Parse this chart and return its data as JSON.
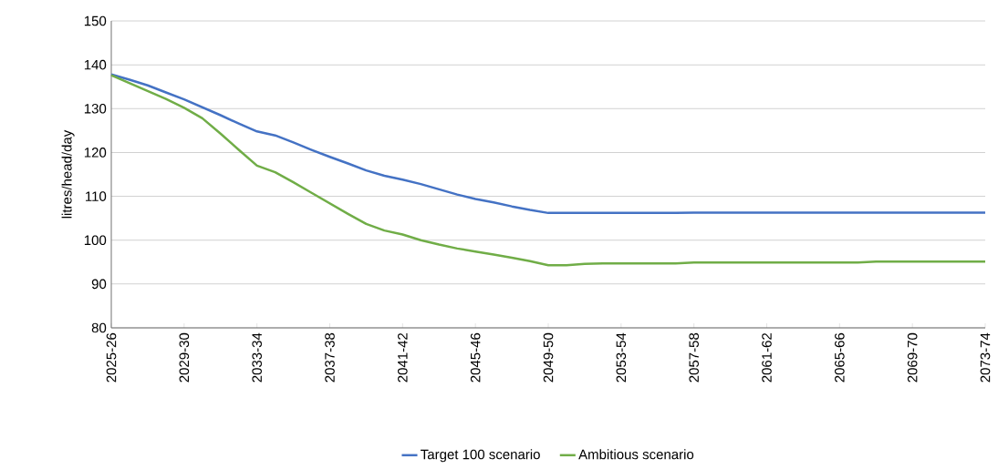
{
  "chart_data": {
    "type": "line",
    "ylabel": "litres/head/day",
    "categories": [
      "2025-26",
      null,
      null,
      null,
      "2029-30",
      null,
      null,
      null,
      "2033-34",
      null,
      null,
      null,
      "2037-38",
      null,
      null,
      null,
      "2041-42",
      null,
      null,
      null,
      "2045-46",
      null,
      null,
      null,
      "2049-50",
      null,
      null,
      null,
      "2053-54",
      null,
      null,
      null,
      "2057-58",
      null,
      null,
      null,
      "2061-62",
      null,
      null,
      null,
      "2065-66",
      null,
      null,
      null,
      "2069-70",
      null,
      null,
      null,
      "2073-74"
    ],
    "series": [
      {
        "name": "Target 100 scenario",
        "color": "#4472c4",
        "values": [
          137.8,
          136.6,
          135.3,
          133.7,
          132.1,
          130.3,
          128.5,
          126.6,
          124.8,
          123.9,
          122.3,
          120.6,
          119.0,
          117.5,
          115.9,
          114.7,
          113.8,
          112.8,
          111.6,
          110.4,
          109.4,
          108.6,
          107.7,
          106.9,
          106.2,
          106.2,
          106.2,
          106.2,
          106.2,
          106.2,
          106.2,
          106.2,
          106.3,
          106.3,
          106.3,
          106.3,
          106.3,
          106.3,
          106.3,
          106.3,
          106.3,
          106.3,
          106.3,
          106.3,
          106.3,
          106.3,
          106.3,
          106.3,
          106.3
        ]
      },
      {
        "name": "Ambitious scenario",
        "color": "#70ad47",
        "values": [
          137.6,
          135.8,
          134.0,
          132.2,
          130.2,
          127.8,
          124.3,
          120.6,
          117.0,
          115.5,
          113.2,
          110.8,
          108.4,
          106.0,
          103.7,
          102.2,
          101.3,
          100.0,
          99.0,
          98.1,
          97.4,
          96.7,
          96.0,
          95.2,
          94.3,
          94.3,
          94.6,
          94.7,
          94.7,
          94.7,
          94.7,
          94.7,
          94.9,
          94.9,
          94.9,
          94.9,
          94.9,
          94.9,
          94.9,
          94.9,
          94.9,
          94.9,
          95.1,
          95.1,
          95.1,
          95.1,
          95.1,
          95.1,
          95.1
        ]
      }
    ],
    "ylim": [
      80,
      150
    ],
    "yticks": [
      80,
      90,
      100,
      110,
      120,
      130,
      140,
      150
    ],
    "grid": "y",
    "legend": "bottom",
    "marker": "none",
    "line_style": "solid"
  }
}
